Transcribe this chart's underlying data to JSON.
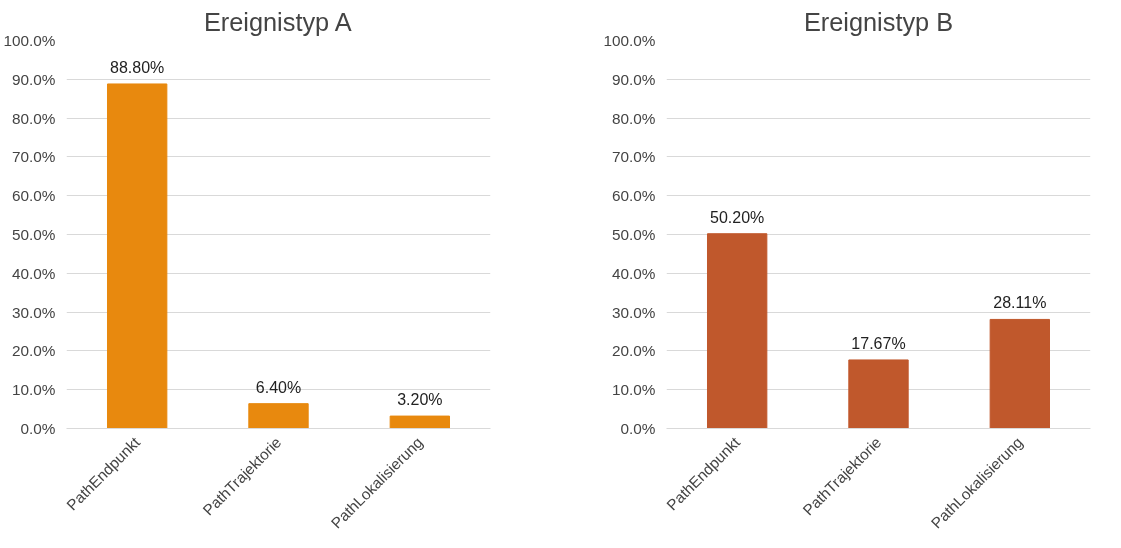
{
  "chart_data": [
    {
      "type": "bar",
      "title": "Ereignistyp A",
      "categories": [
        "PathEndpunkt",
        "PathTrajektorie",
        "PathLokalisierung"
      ],
      "values": [
        88.8,
        6.4,
        3.2
      ],
      "value_labels": [
        "88.80%",
        "6.40%",
        "3.20%"
      ],
      "color": "#e8890e",
      "ylim": [
        0,
        100
      ],
      "yticks": [
        {
          "value": 0,
          "label": "0.0%"
        },
        {
          "value": 10,
          "label": "10.0%"
        },
        {
          "value": 20,
          "label": "20.0%"
        },
        {
          "value": 30,
          "label": "30.0%"
        },
        {
          "value": 40,
          "label": "40.0%"
        },
        {
          "value": 50,
          "label": "50.0%"
        },
        {
          "value": 60,
          "label": "60.0%"
        },
        {
          "value": 70,
          "label": "70.0%"
        },
        {
          "value": 80,
          "label": "80.0%"
        },
        {
          "value": 90,
          "label": "90.0%"
        },
        {
          "value": 100,
          "label": "100.0%"
        }
      ],
      "grid": "y"
    },
    {
      "type": "bar",
      "title": "Ereignistyp B",
      "categories": [
        "PathEndpunkt",
        "PathTrajektorie",
        "PathLokalisierung"
      ],
      "values": [
        50.2,
        17.67,
        28.11
      ],
      "value_labels": [
        "50.20%",
        "17.67%",
        "28.11%"
      ],
      "color": "#c0582c",
      "ylim": [
        0,
        100
      ],
      "yticks": [
        {
          "value": 0,
          "label": "0.0%"
        },
        {
          "value": 10,
          "label": "10.0%"
        },
        {
          "value": 20,
          "label": "20.0%"
        },
        {
          "value": 30,
          "label": "30.0%"
        },
        {
          "value": 40,
          "label": "40.0%"
        },
        {
          "value": 50,
          "label": "50.0%"
        },
        {
          "value": 60,
          "label": "60.0%"
        },
        {
          "value": 70,
          "label": "70.0%"
        },
        {
          "value": 80,
          "label": "80.0%"
        },
        {
          "value": 90,
          "label": "90.0%"
        },
        {
          "value": 100,
          "label": "100.0%"
        }
      ],
      "grid": "y"
    }
  ]
}
